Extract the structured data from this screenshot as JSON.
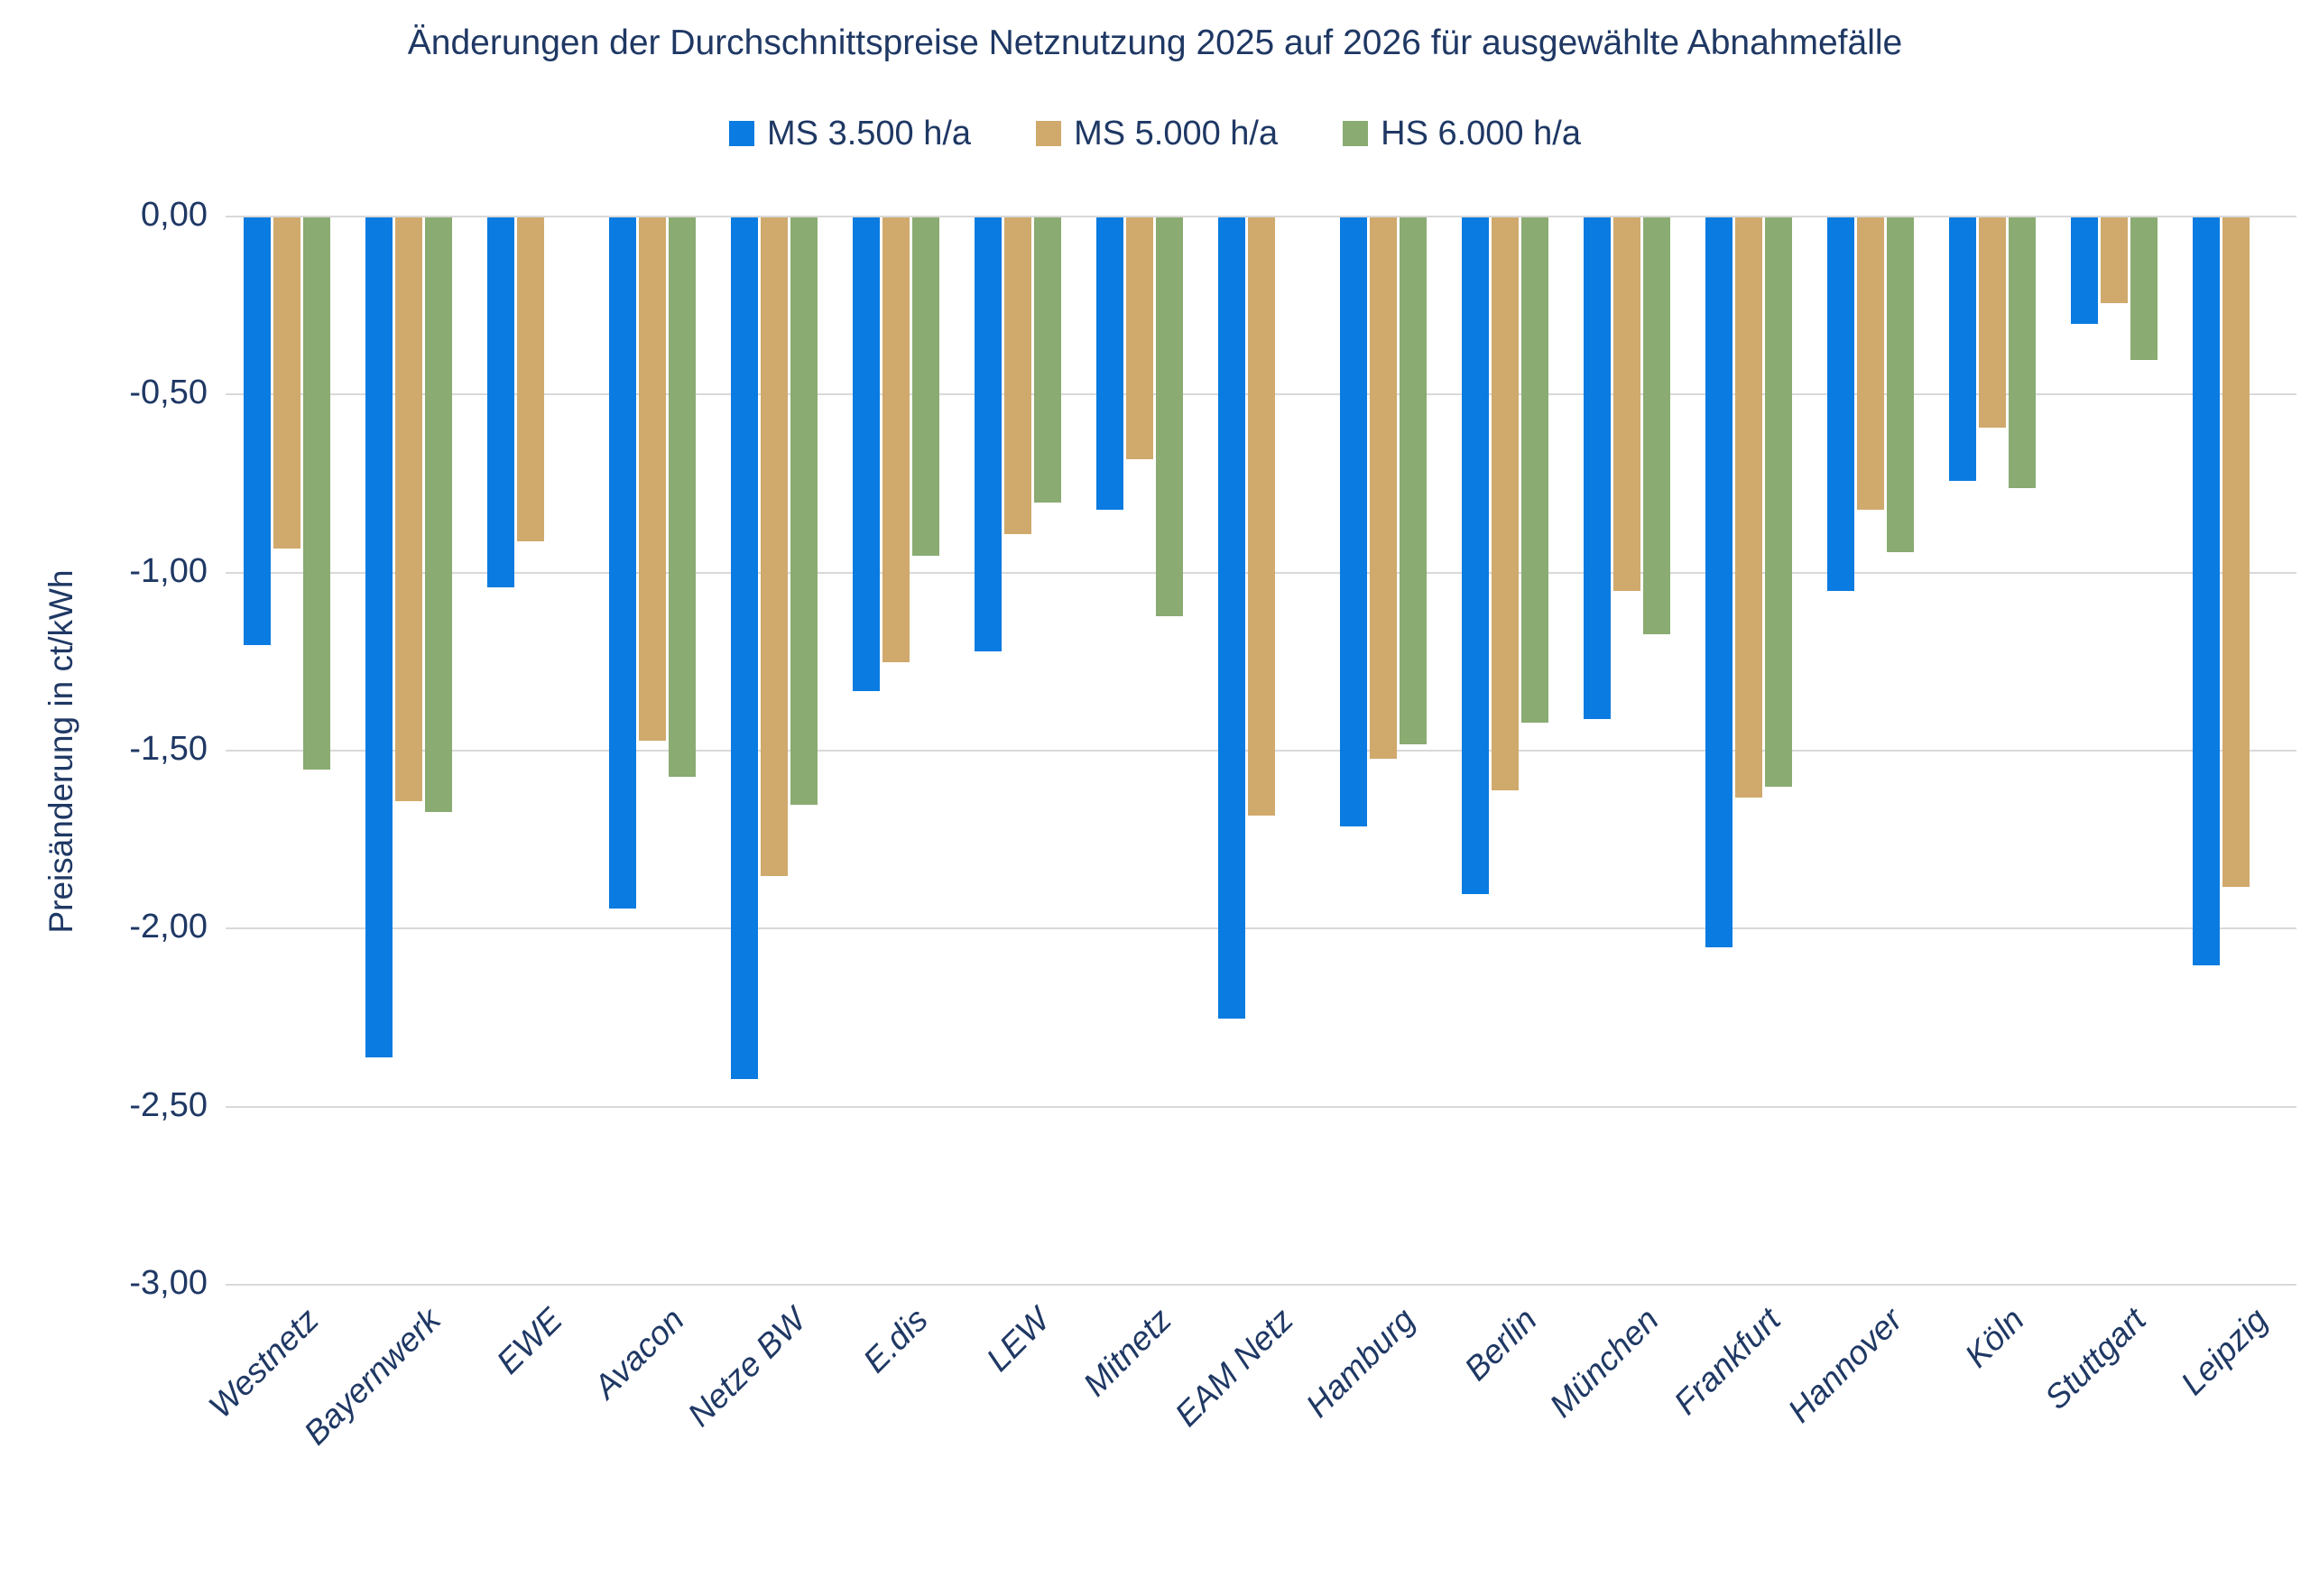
{
  "title": "Änderungen der Durchschnittspreise Netznutzung 2025 auf 2026 für ausgewählte Abnahmefälle",
  "colors": {
    "series_ms3500": "#0a7be0",
    "series_ms5000": "#d0a96c",
    "series_hs6000": "#8aab71",
    "text": "#1f3864",
    "gridline": "#d9d9d9",
    "background": "#ffffff"
  },
  "legend": {
    "items": [
      {
        "label": "MS 3.500 h/a",
        "color": "#0a7be0"
      },
      {
        "label": "MS 5.000 h/a",
        "color": "#d0a96c"
      },
      {
        "label": "HS 6.000 h/a",
        "color": "#8aab71"
      }
    ]
  },
  "y_axis": {
    "title": "Preisänderung in ct/kWh",
    "tick_labels": [
      "0,00",
      "-0,50",
      "-1,00",
      "-1,50",
      "-2,00",
      "-2,50",
      "-3,00"
    ],
    "max": 0,
    "min": -3,
    "step": 0.5
  },
  "chart_data": {
    "type": "bar",
    "title": "Änderungen der Durchschnittspreise Netznutzung 2025 auf 2026 für ausgewählte Abnahmefälle",
    "xlabel": "",
    "ylabel": "Preisänderung in ct/kWh",
    "ylim": [
      -3,
      0
    ],
    "grid": true,
    "legend_position": "top",
    "categories": [
      "Westnetz",
      "Bayernwerk",
      "EWE",
      "Avacon",
      "Netze BW",
      "E.dis",
      "LEW",
      "Mitnetz",
      "EAM Netz",
      "Hamburg",
      "Berlin",
      "München",
      "Frankfurt",
      "Hannover",
      "Köln",
      "Stuttgart",
      "Leipzig"
    ],
    "series": [
      {
        "name": "MS 3.500 h/a",
        "color": "#0a7be0",
        "values": [
          -1.2,
          -2.36,
          -1.04,
          -1.94,
          -2.42,
          -1.33,
          -1.22,
          -0.82,
          -2.25,
          -1.71,
          -1.9,
          -1.41,
          -2.05,
          -1.05,
          -0.74,
          -0.3,
          -2.1
        ]
      },
      {
        "name": "MS 5.000 h/a",
        "color": "#d0a96c",
        "values": [
          -0.93,
          -1.64,
          -0.91,
          -1.47,
          -1.85,
          -1.25,
          -0.89,
          -0.68,
          -1.68,
          -1.52,
          -1.61,
          -1.05,
          -1.63,
          -0.82,
          -0.59,
          -0.24,
          -1.88
        ]
      },
      {
        "name": "HS 6.000 h/a",
        "color": "#8aab71",
        "values": [
          -1.55,
          -1.67,
          null,
          -1.57,
          -1.65,
          -0.95,
          -0.8,
          -1.12,
          null,
          -1.48,
          -1.42,
          -1.17,
          -1.6,
          -0.94,
          -0.76,
          -0.4,
          null
        ]
      }
    ]
  }
}
